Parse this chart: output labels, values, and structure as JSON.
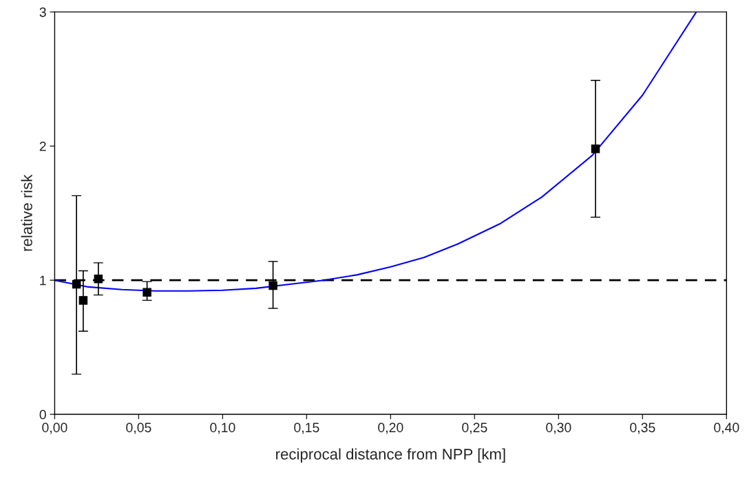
{
  "chart_data": {
    "type": "scatter",
    "xlabel": "reciprocal distance from NPP [km]",
    "ylabel": "relative risk",
    "xlim": [
      0,
      0.4
    ],
    "ylim": [
      0,
      3
    ],
    "xticks": [
      {
        "value": 0,
        "label": "0,00"
      },
      {
        "value": 0.05,
        "label": "0,05"
      },
      {
        "value": 0.1,
        "label": "0,10"
      },
      {
        "value": 0.15,
        "label": "0,15"
      },
      {
        "value": 0.2,
        "label": "0,20"
      },
      {
        "value": 0.25,
        "label": "0,25"
      },
      {
        "value": 0.3,
        "label": "0,30"
      },
      {
        "value": 0.35,
        "label": "0,35"
      },
      {
        "value": 0.4,
        "label": "0,40"
      }
    ],
    "yticks": [
      0,
      1,
      2,
      3
    ],
    "grid": false,
    "legend": false,
    "series": [
      {
        "type": "scatter",
        "color": "#000000",
        "marker": "square",
        "x": [
          0.013,
          0.017,
          0.026,
          0.055,
          0.13,
          0.322
        ],
        "values": [
          0.97,
          0.85,
          1.01,
          0.91,
          0.96,
          1.98
        ],
        "errors": [
          [
            0.3,
            1.63
          ],
          [
            0.62,
            1.07
          ],
          [
            0.89,
            1.13
          ],
          [
            0.85,
            0.99
          ],
          [
            0.79,
            1.14
          ],
          [
            1.47,
            2.49
          ]
        ]
      },
      {
        "type": "line",
        "color": "#0000ff",
        "marker": "none",
        "line_style": "solid",
        "x": [
          0,
          0.02,
          0.04,
          0.06,
          0.08,
          0.1,
          0.12,
          0.14,
          0.16,
          0.18,
          0.2,
          0.22,
          0.24,
          0.265,
          0.29,
          0.32,
          0.35,
          0.382
        ],
        "values": [
          1.0,
          0.95,
          0.93,
          0.92,
          0.92,
          0.925,
          0.94,
          0.97,
          1.0,
          1.04,
          1.1,
          1.17,
          1.27,
          1.42,
          1.62,
          1.93,
          2.38,
          3.0
        ]
      }
    ],
    "ref_lines": [
      {
        "axis": "y",
        "value": 1,
        "color": "#000000",
        "line_style": "dashed"
      }
    ]
  }
}
